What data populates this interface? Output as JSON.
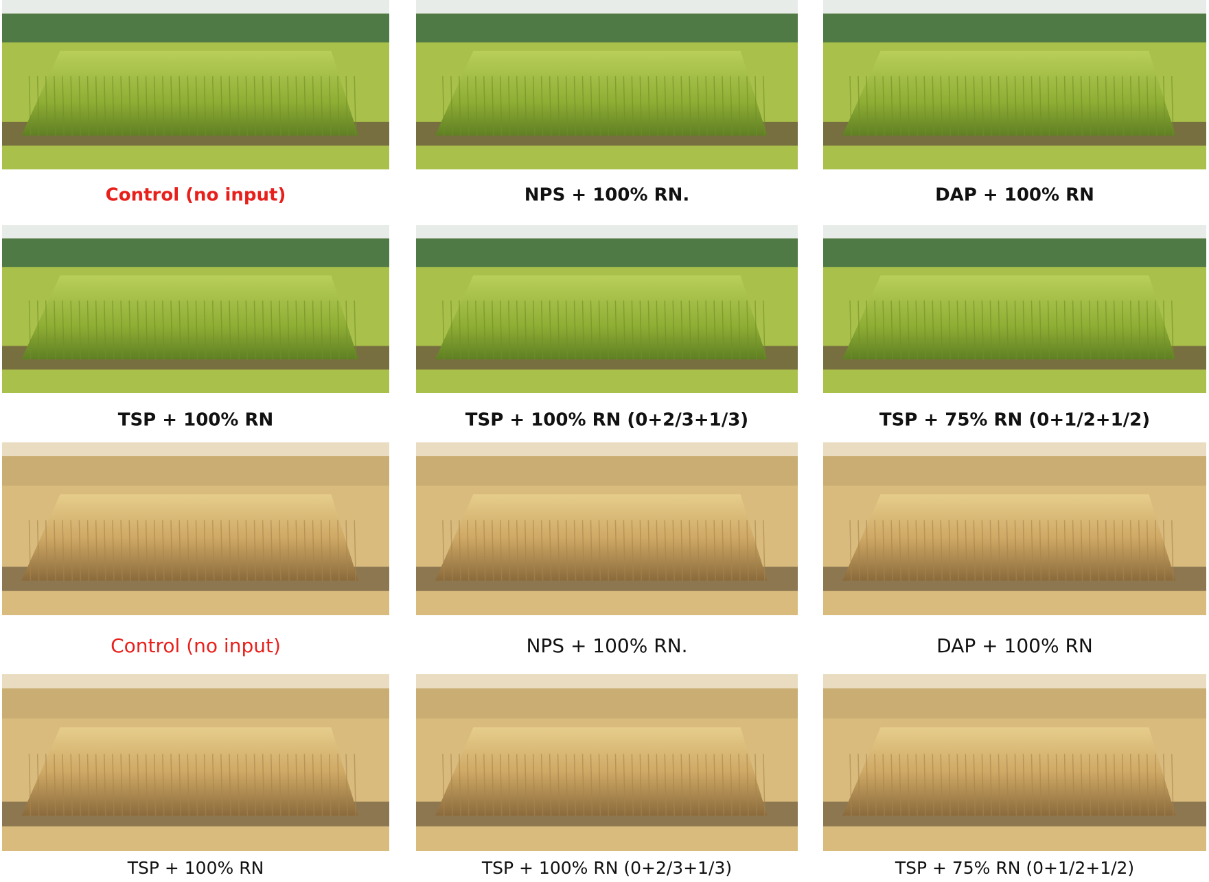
{
  "rows": [
    {
      "panels": [
        {
          "caption": "Control (no input)"
        },
        {
          "caption": "NPS + 100%  RN."
        },
        {
          "caption": "DAP + 100% RN"
        }
      ]
    },
    {
      "panels": [
        {
          "caption": "TSP + 100% RN"
        },
        {
          "caption": "TSP + 100% RN (0+2/3+1/3)"
        },
        {
          "caption": "TSP + 75% RN (0+1/2+1/2)"
        }
      ]
    },
    {
      "panels": [
        {
          "caption": "Control (no input)"
        },
        {
          "caption": "NPS + 100%  RN."
        },
        {
          "caption": "DAP + 100% RN"
        }
      ]
    },
    {
      "panels": [
        {
          "caption": "TSP + 100% RN"
        },
        {
          "caption": "TSP + 100% RN (0+2/3+1/3)"
        },
        {
          "caption": "TSP + 75% RN (0+1/2+1/2)"
        }
      ]
    }
  ]
}
